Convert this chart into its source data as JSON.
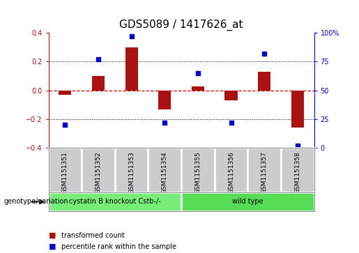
{
  "title": "GDS5089 / 1417626_at",
  "samples": [
    "GSM1151351",
    "GSM1151352",
    "GSM1151353",
    "GSM1151354",
    "GSM1151355",
    "GSM1151356",
    "GSM1151357",
    "GSM1151358"
  ],
  "transformed_count": [
    -0.03,
    0.1,
    0.3,
    -0.13,
    0.03,
    -0.07,
    0.13,
    -0.26
  ],
  "percentile_rank": [
    20,
    77,
    97,
    22,
    65,
    22,
    82,
    2
  ],
  "ylim_left": [
    -0.4,
    0.4
  ],
  "ylim_right": [
    0,
    100
  ],
  "bar_color": "#aa1111",
  "dot_color": "#0000cc",
  "zero_line_color": "#cc0000",
  "group1_label": "cystatin B knockout Cstb-/-",
  "group1_count": 4,
  "group2_label": "wild type",
  "group2_count": 4,
  "group1_color": "#77ee77",
  "group2_color": "#55dd55",
  "xlabel_bg_color": "#cccccc",
  "xlabel_border_color": "#888888",
  "genotype_label": "genotype/variation",
  "legend_bar": "transformed count",
  "legend_dot": "percentile rank within the sample",
  "title_fontsize": 11,
  "tick_fontsize": 7,
  "sample_fontsize": 6.5,
  "label_fontsize": 8
}
